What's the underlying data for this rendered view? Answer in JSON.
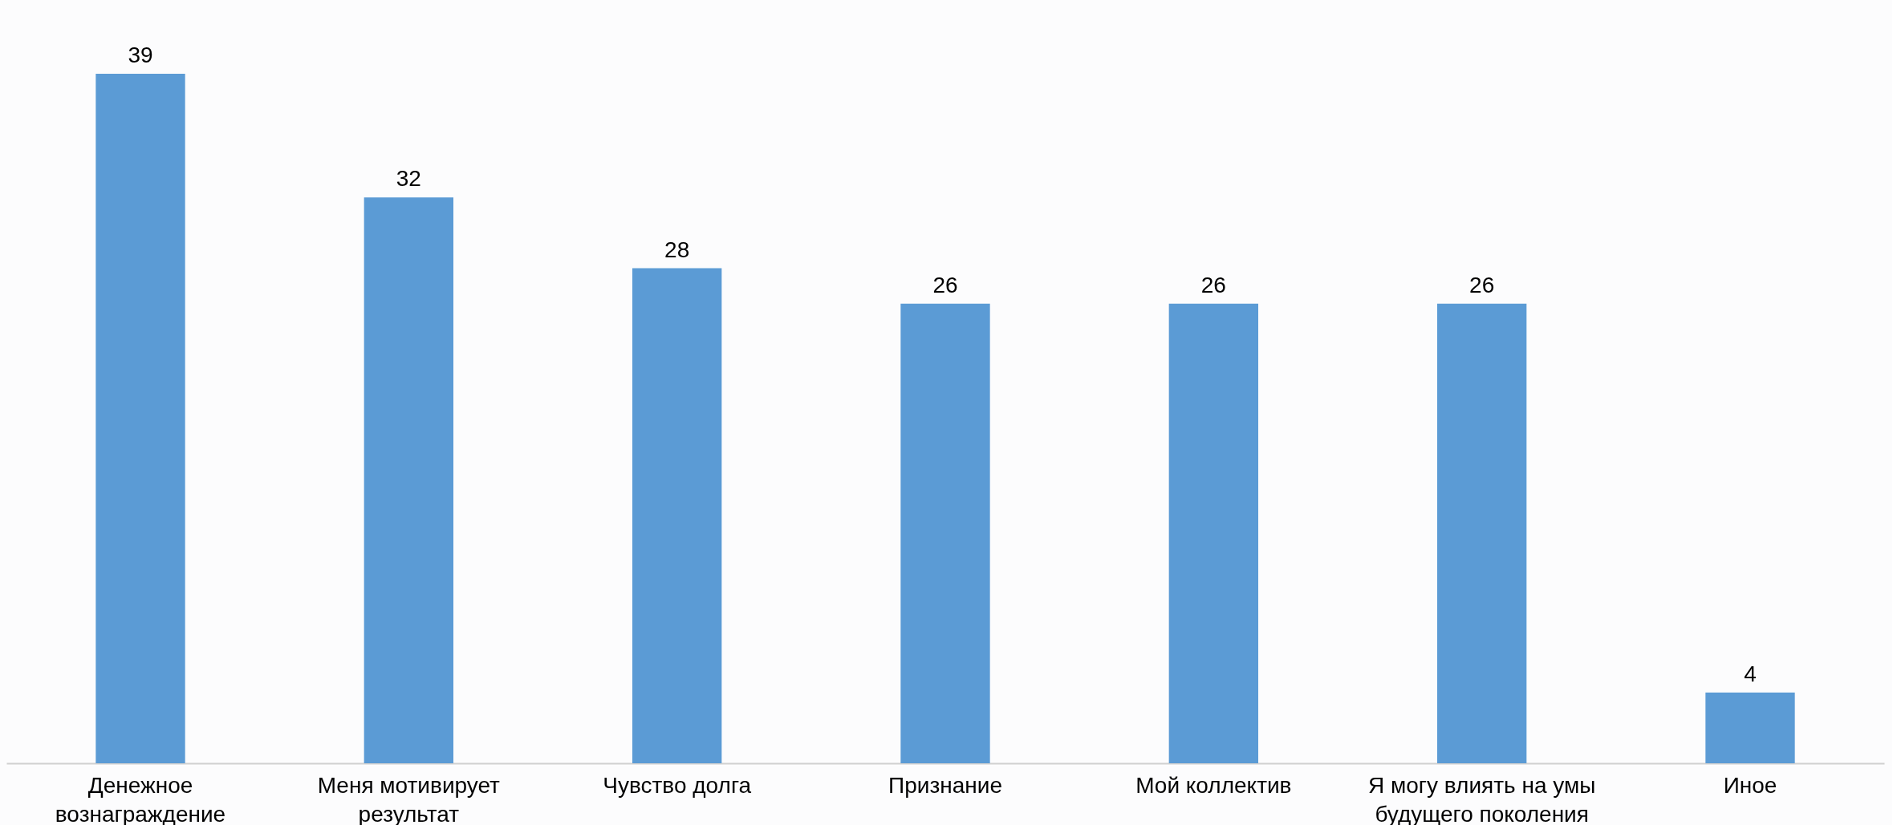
{
  "chart_data": {
    "type": "bar",
    "categories": [
      "Денежное вознаграждение",
      "Меня мотивирует результат",
      "Чувство долга",
      "Признание",
      "Мой коллектив",
      "Я могу влиять на умы будущего поколения",
      "Иное"
    ],
    "values": [
      39,
      32,
      28,
      26,
      26,
      26,
      4
    ],
    "color": "#5b9bd5",
    "data_labels": true
  }
}
